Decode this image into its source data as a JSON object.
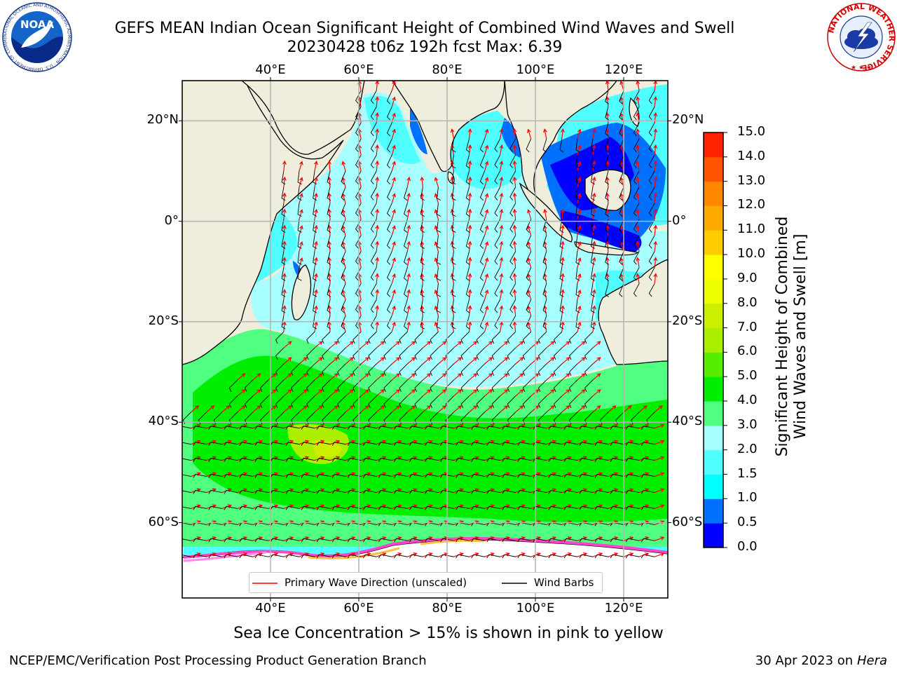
{
  "title": {
    "line1": "GEFS MEAN Indian Ocean Significant Height of Combined Wind Waves and Swell",
    "line2": "20230428 t06z 192h fcst   Max: 6.39"
  },
  "map": {
    "lon_labels": [
      "40°E",
      "60°E",
      "80°E",
      "100°E",
      "120°E"
    ],
    "lat_labels": [
      "20°N",
      "0°",
      "20°S",
      "40°S",
      "60°S"
    ],
    "lon_range_deg": [
      20,
      130
    ],
    "lat_range_deg": [
      -75,
      28
    ],
    "legend": {
      "wave_direction": "Primary Wave Direction (unscaled)",
      "wind_barbs": "Wind Barbs"
    },
    "colors": {
      "land": "#efeedc",
      "sea_ice": "#ffffff",
      "wave_arrow": "#ff0000",
      "wind_barb": "#000000",
      "grid": "#b4b4b4"
    }
  },
  "colorbar": {
    "label_line1": "Significant Height of Combined",
    "label_line2": "Wind Waves and Swell [m]",
    "levels": [
      "0.0",
      "0.5",
      "1.0",
      "1.5",
      "2.0",
      "3.0",
      "4.0",
      "5.0",
      "6.0",
      "7.0",
      "8.0",
      "9.0",
      "10.0",
      "11.0",
      "12.0",
      "13.0",
      "14.0",
      "15.0"
    ],
    "colors": [
      "#0000ff",
      "#0070ff",
      "#00ffff",
      "#50ffff",
      "#a8ffff",
      "#50ff80",
      "#00ee00",
      "#55ee00",
      "#aaee00",
      "#ccee00",
      "#eeff00",
      "#ffff00",
      "#ffcc00",
      "#ffaa00",
      "#ff8800",
      "#ff5500",
      "#ff2200"
    ]
  },
  "subtitle": "Sea Ice Concentration > 15% is shown in pink to yellow",
  "footer": {
    "left": "NCEP/EMC/Verification Post Processing Product Generation Branch",
    "right_date": "30 Apr 2023 on",
    "right_host": "Hera"
  },
  "logos": {
    "left_text": "NOAA",
    "left_ring_text": "NATIONAL OCEANIC AND ATMOSPHERIC ADMINISTRATION · U.S. DEPARTMENT OF COMMERCE",
    "right_ring_text": "NATIONAL WEATHER SERVICE"
  }
}
